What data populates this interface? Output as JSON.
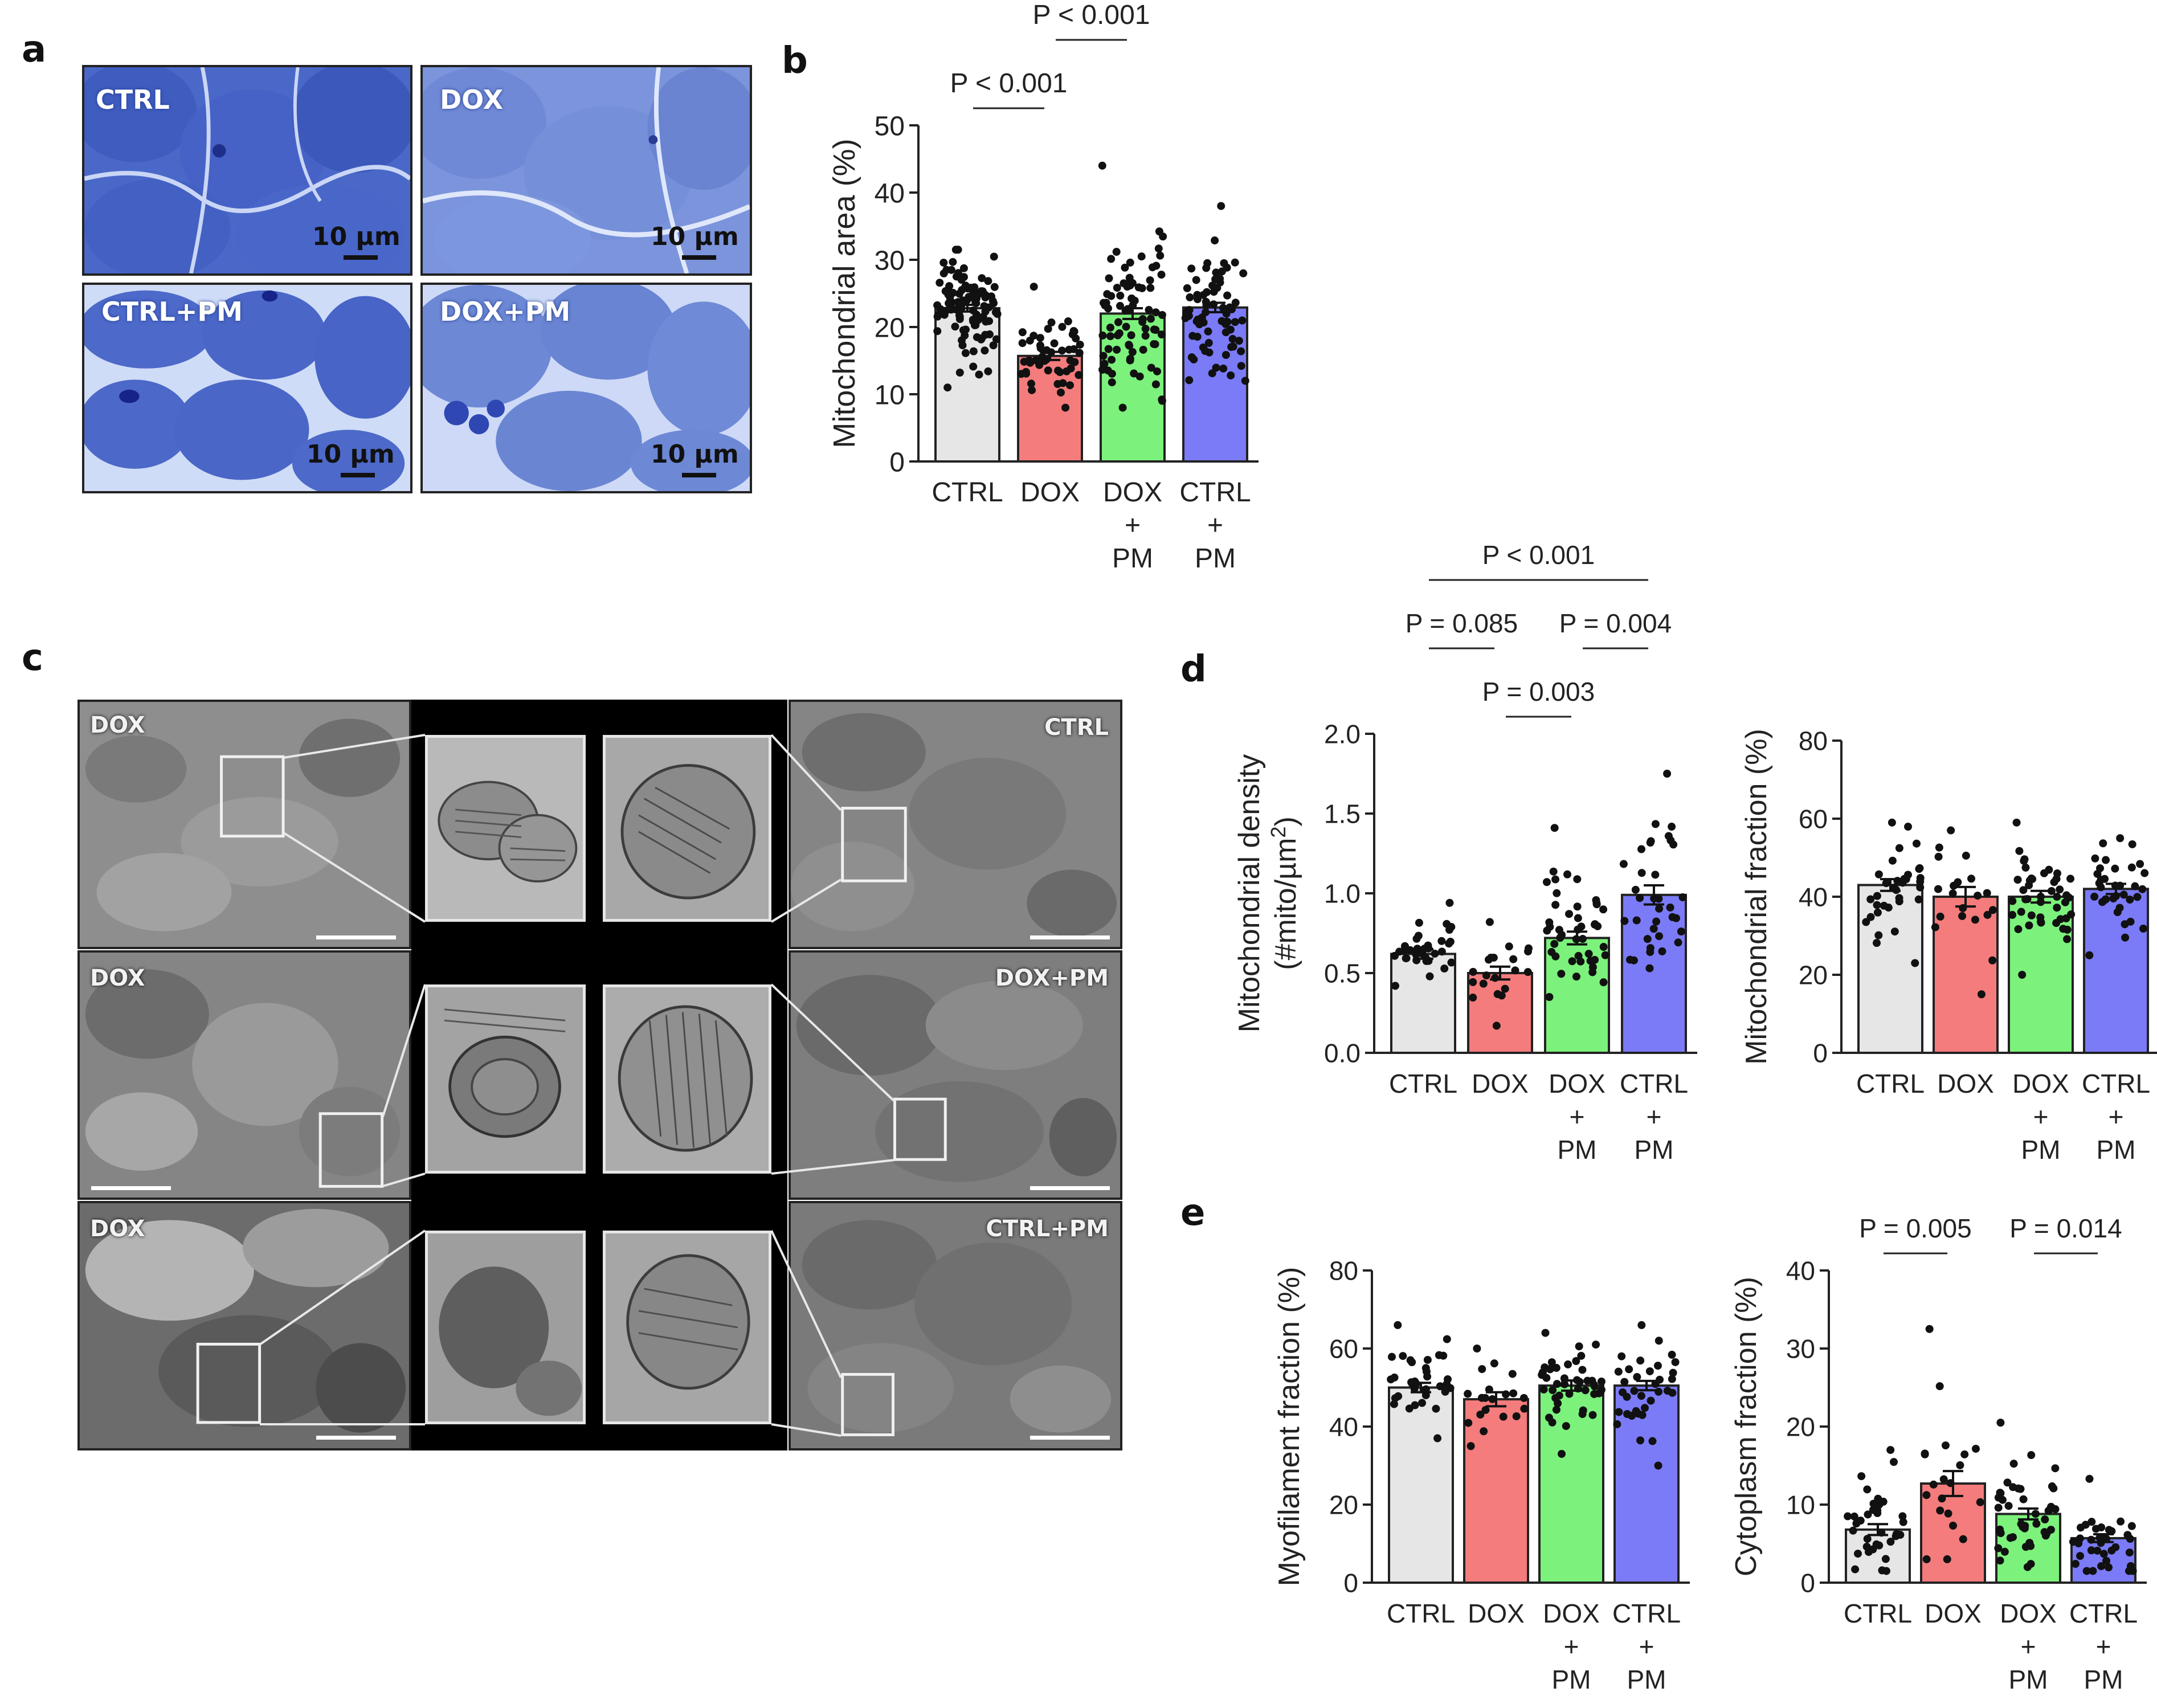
{
  "panel_letters": {
    "a": "a",
    "b": "b",
    "c": "c",
    "d": "d",
    "e": "e"
  },
  "panel_a": {
    "images": [
      {
        "label": "CTRL",
        "scale": "10 µm"
      },
      {
        "label": "DOX",
        "scale": "10 µm"
      },
      {
        "label": "CTRL+PM",
        "scale": "10 µm"
      },
      {
        "label": "DOX+PM",
        "scale": "10 µm"
      }
    ]
  },
  "panel_c": {
    "left_labels": [
      "DOX",
      "DOX",
      "DOX"
    ],
    "right_labels": [
      "CTRL",
      "DOX+PM",
      "CTRL+PM"
    ]
  },
  "colors": {
    "CTRL": "#e6e6e6",
    "DOX": "#f47c7c",
    "DOX+PM": "#7cf27c",
    "CTRL+PM": "#7b7bf7"
  },
  "chart_data": [
    {
      "id": "b",
      "type": "bar",
      "ylabel": "Mitochondrial area (%)",
      "categories": [
        [
          "CTRL"
        ],
        [
          "DOX"
        ],
        [
          "DOX",
          "+",
          "PM"
        ],
        [
          "CTRL",
          "+",
          "PM"
        ]
      ],
      "ylim": [
        0,
        50
      ],
      "yticks": [
        0,
        10,
        20,
        30,
        40,
        50
      ],
      "values": [
        22.8,
        15.7,
        22.0,
        22.9
      ],
      "sem": [
        0.5,
        0.6,
        0.8,
        0.7
      ],
      "points_n": [
        110,
        50,
        85,
        75
      ],
      "points_range": [
        [
          11,
          31.5
        ],
        [
          8,
          26
        ],
        [
          8,
          44
        ],
        [
          12,
          38
        ]
      ],
      "significance": [
        {
          "from": 0,
          "to": 1,
          "label": "P < 0.001",
          "level": 1
        },
        {
          "from": 1,
          "to": 2,
          "label": "P < 0.001",
          "level": 2
        }
      ]
    },
    {
      "id": "d1",
      "type": "bar",
      "ylabel": "Mitochondrial density (#mito/µm²)",
      "ylabel_parts": [
        "Mitochondrial density",
        "(#mito/µm",
        "2",
        ")"
      ],
      "categories": [
        [
          "CTRL"
        ],
        [
          "DOX"
        ],
        [
          "DOX",
          "+",
          "PM"
        ],
        [
          "CTRL",
          "+",
          "PM"
        ]
      ],
      "ylim": [
        0,
        2.0
      ],
      "yticks": [
        "0.0",
        "0.5",
        "1.0",
        "1.5",
        "2.0"
      ],
      "values": [
        0.62,
        0.5,
        0.72,
        0.99
      ],
      "sem": [
        0.03,
        0.04,
        0.04,
        0.06
      ],
      "points_n": [
        35,
        20,
        45,
        35
      ],
      "points_range": [
        [
          0.42,
          0.94
        ],
        [
          0.17,
          0.82
        ],
        [
          0.35,
          1.41
        ],
        [
          0.53,
          1.75
        ]
      ],
      "significance": [
        {
          "from": 0,
          "to": 1,
          "label": "P = 0.085",
          "level": 2
        },
        {
          "from": 2,
          "to": 3,
          "label": "P = 0.004",
          "level": 2
        },
        {
          "from": 1,
          "to": 2,
          "label": "P = 0.003",
          "level": 1
        },
        {
          "from": 0,
          "to": 3,
          "label": "P < 0.001",
          "level": 3
        }
      ]
    },
    {
      "id": "d2",
      "type": "bar",
      "ylabel": "Mitochondrial fraction (%)",
      "categories": [
        [
          "CTRL"
        ],
        [
          "DOX"
        ],
        [
          "DOX",
          "+",
          "PM"
        ],
        [
          "CTRL",
          "+",
          "PM"
        ]
      ],
      "ylim": [
        0,
        80
      ],
      "yticks": [
        0,
        20,
        40,
        60,
        80
      ],
      "values": [
        43,
        40,
        40,
        42
      ],
      "sem": [
        1.5,
        2.5,
        1.5,
        1.3
      ],
      "points_n": [
        35,
        20,
        45,
        35
      ],
      "points_range": [
        [
          23,
          59
        ],
        [
          15,
          57
        ],
        [
          20,
          59
        ],
        [
          25,
          55
        ]
      ],
      "significance": []
    },
    {
      "id": "e1",
      "type": "bar",
      "ylabel": "Myofilament fraction (%)",
      "categories": [
        [
          "CTRL"
        ],
        [
          "DOX"
        ],
        [
          "DOX",
          "+",
          "PM"
        ],
        [
          "CTRL",
          "+",
          "PM"
        ]
      ],
      "ylim": [
        0,
        80
      ],
      "yticks": [
        0,
        20,
        40,
        60,
        80
      ],
      "values": [
        50,
        47,
        50.5,
        50.5
      ],
      "sem": [
        1.2,
        1.8,
        1.3,
        1.2
      ],
      "points_n": [
        35,
        20,
        45,
        35
      ],
      "points_range": [
        [
          37,
          66
        ],
        [
          35,
          60
        ],
        [
          33,
          64
        ],
        [
          30,
          66
        ]
      ],
      "significance": []
    },
    {
      "id": "e2",
      "type": "bar",
      "ylabel": "Cytoplasm fraction (%)",
      "categories": [
        [
          "CTRL"
        ],
        [
          "DOX"
        ],
        [
          "DOX",
          "+",
          "PM"
        ],
        [
          "CTRL",
          "+",
          "PM"
        ]
      ],
      "ylim": [
        0,
        40
      ],
      "yticks": [
        0,
        10,
        20,
        30,
        40
      ],
      "values": [
        6.8,
        12.7,
        8.8,
        5.7
      ],
      "sem": [
        0.7,
        1.6,
        0.7,
        0.5
      ],
      "points_n": [
        35,
        20,
        45,
        35
      ],
      "points_range": [
        [
          1.5,
          17
        ],
        [
          3,
          32.5
        ],
        [
          2,
          20.5
        ],
        [
          1.5,
          13.3
        ]
      ],
      "significance": [
        {
          "from": 0,
          "to": 1,
          "label": "P = 0.005",
          "level": 1
        },
        {
          "from": 2,
          "to": 3,
          "label": "P = 0.014",
          "level": 1
        }
      ]
    }
  ]
}
